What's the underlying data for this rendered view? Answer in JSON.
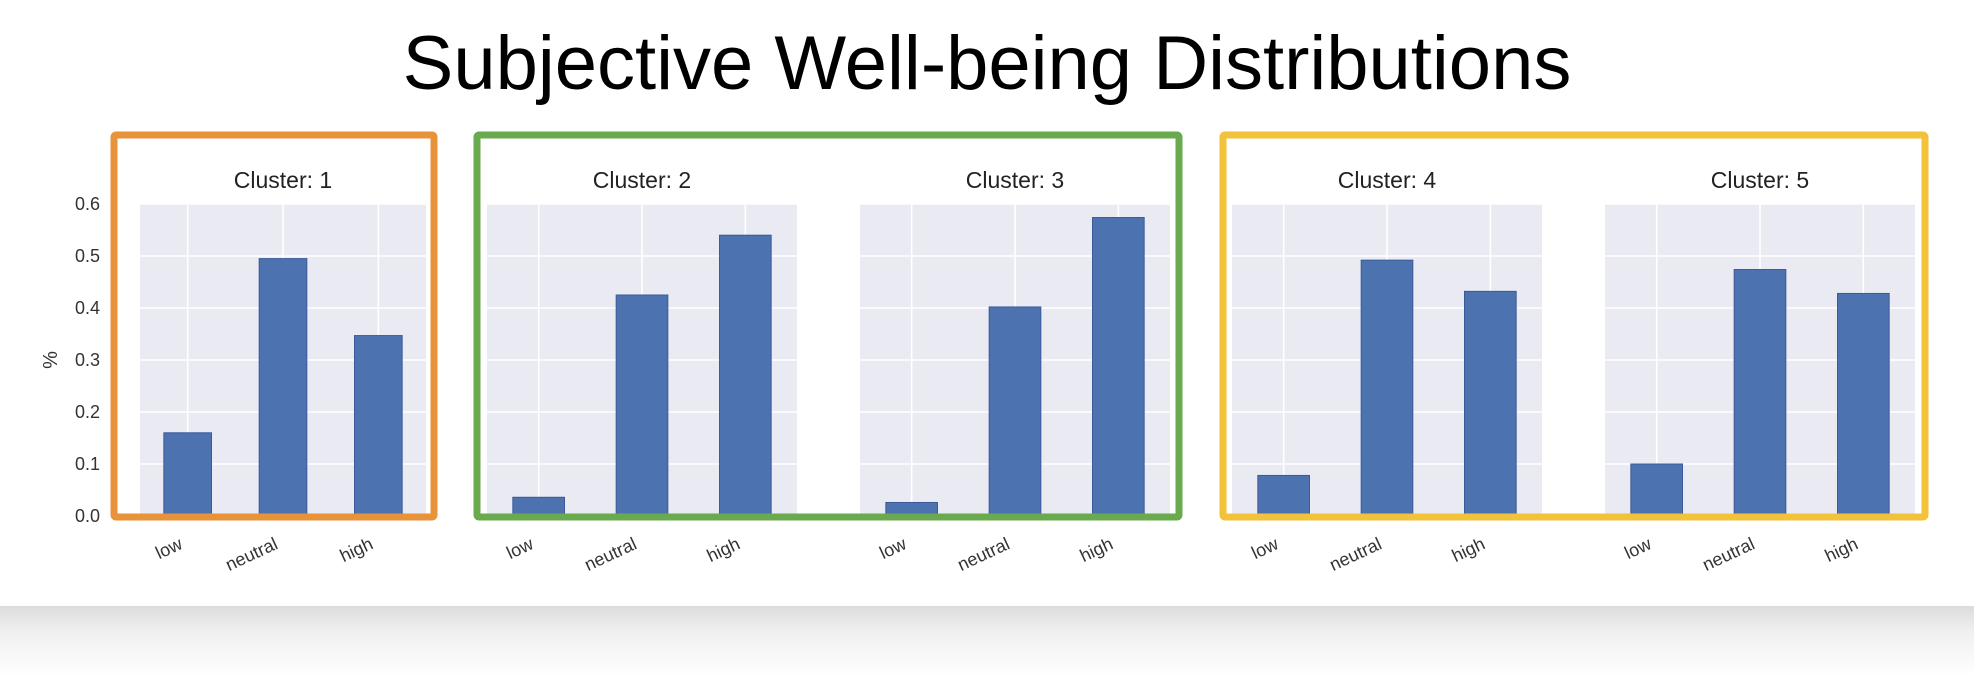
{
  "title": "Subjective Well-being Distributions",
  "colors": {
    "bar": "#4c72b0",
    "bar_edge": "#3b5a9a",
    "panel_bg": "#eaeaf2",
    "grid": "#ffffff",
    "group_1": "#e8923a",
    "group_2": "#6aaa4f",
    "group_3": "#f2c23a"
  },
  "chart_data": [
    {
      "type": "bar",
      "title": "Cluster: 1",
      "categories": [
        "low",
        "neutral",
        "high"
      ],
      "values": [
        0.16,
        0.495,
        0.347
      ],
      "ylabel": "%",
      "ylim": [
        0.0,
        0.6
      ],
      "yticks": [
        "0.0",
        "0.1",
        "0.2",
        "0.3",
        "0.4",
        "0.5",
        "0.6"
      ],
      "grid": true
    },
    {
      "type": "bar",
      "title": "Cluster: 2",
      "categories": [
        "low",
        "neutral",
        "high"
      ],
      "values": [
        0.036,
        0.425,
        0.54
      ],
      "ylabel": "",
      "ylim": [
        0.0,
        0.6
      ],
      "grid": true
    },
    {
      "type": "bar",
      "title": "Cluster: 3",
      "categories": [
        "low",
        "neutral",
        "high"
      ],
      "values": [
        0.026,
        0.402,
        0.574
      ],
      "ylabel": "",
      "ylim": [
        0.0,
        0.6
      ],
      "grid": true
    },
    {
      "type": "bar",
      "title": "Cluster: 4",
      "categories": [
        "low",
        "neutral",
        "high"
      ],
      "values": [
        0.078,
        0.492,
        0.432
      ],
      "ylabel": "",
      "ylim": [
        0.0,
        0.6
      ],
      "grid": true
    },
    {
      "type": "bar",
      "title": "Cluster: 5",
      "categories": [
        "low",
        "neutral",
        "high"
      ],
      "values": [
        0.1,
        0.474,
        0.428
      ],
      "ylabel": "",
      "ylim": [
        0.0,
        0.6
      ],
      "grid": true
    }
  ]
}
